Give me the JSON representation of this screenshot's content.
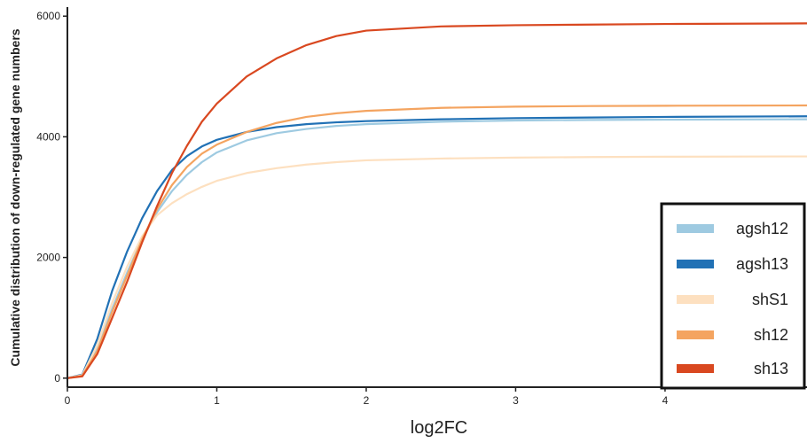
{
  "chart_data": {
    "type": "line",
    "xlabel": "log2FC",
    "ylabel": "Cumulative distribution of down-regulated gene numbers",
    "xlim": [
      0,
      4.95
    ],
    "ylim": [
      -150,
      6150
    ],
    "x_ticks": [
      0,
      1,
      2,
      3,
      4
    ],
    "y_ticks": [
      0,
      2000,
      4000,
      6000
    ],
    "grid": false,
    "legend_position": "bottom-right",
    "series": [
      {
        "name": "agsh12",
        "color": "#9ecae1",
        "x": [
          0,
          0.1,
          0.2,
          0.3,
          0.4,
          0.5,
          0.6,
          0.7,
          0.8,
          0.9,
          1.0,
          1.2,
          1.4,
          1.6,
          1.8,
          2.0,
          2.5,
          3.0,
          3.5,
          4.0,
          4.95
        ],
        "y": [
          0,
          50,
          500,
          1150,
          1750,
          2300,
          2750,
          3100,
          3370,
          3580,
          3740,
          3940,
          4060,
          4130,
          4180,
          4210,
          4250,
          4270,
          4280,
          4285,
          4290
        ]
      },
      {
        "name": "agsh13",
        "color": "#2171b5",
        "x": [
          0,
          0.1,
          0.2,
          0.3,
          0.4,
          0.5,
          0.6,
          0.7,
          0.8,
          0.9,
          1.0,
          1.2,
          1.4,
          1.6,
          1.8,
          2.0,
          2.5,
          3.0,
          3.5,
          4.0,
          4.95
        ],
        "y": [
          0,
          60,
          650,
          1450,
          2100,
          2650,
          3100,
          3450,
          3680,
          3840,
          3950,
          4080,
          4160,
          4210,
          4240,
          4260,
          4290,
          4310,
          4320,
          4330,
          4340
        ]
      },
      {
        "name": "shS1",
        "color": "#fde0c0",
        "x": [
          0,
          0.1,
          0.2,
          0.3,
          0.4,
          0.5,
          0.6,
          0.7,
          0.8,
          0.9,
          1.0,
          1.2,
          1.4,
          1.6,
          1.8,
          2.0,
          2.5,
          3.0,
          3.5,
          4.0,
          4.95
        ],
        "y": [
          0,
          50,
          550,
          1250,
          1850,
          2350,
          2700,
          2900,
          3050,
          3170,
          3270,
          3400,
          3480,
          3540,
          3580,
          3610,
          3640,
          3655,
          3665,
          3670,
          3675
        ]
      },
      {
        "name": "sh12",
        "color": "#f4a460",
        "x": [
          0,
          0.1,
          0.2,
          0.3,
          0.4,
          0.5,
          0.6,
          0.7,
          0.8,
          0.9,
          1.0,
          1.2,
          1.4,
          1.6,
          1.8,
          2.0,
          2.5,
          3.0,
          3.5,
          4.0,
          4.95
        ],
        "y": [
          0,
          40,
          450,
          1100,
          1700,
          2300,
          2800,
          3200,
          3500,
          3720,
          3870,
          4080,
          4230,
          4330,
          4390,
          4430,
          4480,
          4500,
          4510,
          4515,
          4520
        ]
      },
      {
        "name": "sh13",
        "color": "#d94820",
        "x": [
          0,
          0.1,
          0.2,
          0.3,
          0.4,
          0.5,
          0.6,
          0.7,
          0.8,
          0.9,
          1.0,
          1.2,
          1.4,
          1.6,
          1.8,
          2.0,
          2.5,
          3.0,
          3.5,
          4.0,
          4.95
        ],
        "y": [
          0,
          30,
          400,
          1000,
          1600,
          2250,
          2850,
          3400,
          3850,
          4250,
          4550,
          5000,
          5300,
          5520,
          5670,
          5760,
          5830,
          5850,
          5860,
          5870,
          5880
        ]
      }
    ]
  }
}
